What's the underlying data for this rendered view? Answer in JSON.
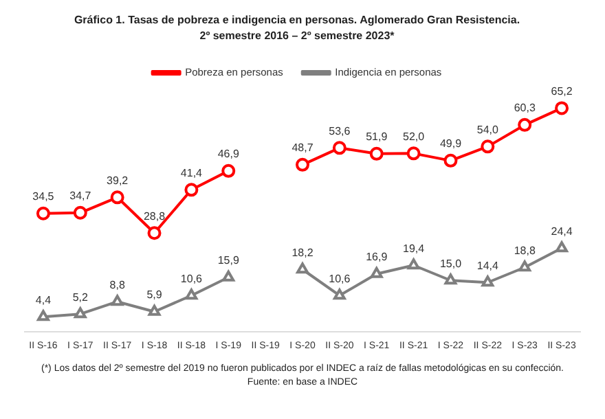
{
  "chart_data": {
    "type": "line",
    "title": "Gráfico 1. Tasas de pobreza e indigencia en personas. Aglomerado Gran Resistencia.",
    "subtitle": "2º semestre 2016 – 2º semestre 2023*",
    "categories": [
      "II S-16",
      "I S-17",
      "II S-17",
      "I S-18",
      "II S-18",
      "I S-19",
      "II S-19",
      "I S-20",
      "II S-20",
      "I S-21",
      "II S-21",
      "I S-22",
      "II S-22",
      "I S-23",
      "II S-23"
    ],
    "series": [
      {
        "name": "Pobreza en personas",
        "color": "#ff0000",
        "marker": "circle",
        "values": [
          34.5,
          34.7,
          39.2,
          28.8,
          41.4,
          46.9,
          null,
          48.7,
          53.6,
          51.9,
          52.0,
          49.9,
          54.0,
          60.3,
          65.2
        ],
        "value_labels": [
          "34,5",
          "34,7",
          "39,2",
          "28,8",
          "41,4",
          "46,9",
          null,
          "48,7",
          "53,6",
          "51,9",
          "52,0",
          "49,9",
          "54,0",
          "60,3",
          "65,2"
        ]
      },
      {
        "name": "Indigencia en personas",
        "color": "#7f7f7f",
        "marker": "triangle",
        "values": [
          4.4,
          5.2,
          8.8,
          5.9,
          10.6,
          15.9,
          null,
          18.2,
          10.6,
          16.9,
          19.4,
          15.0,
          14.4,
          18.8,
          24.4
        ],
        "value_labels": [
          "4,4",
          "5,2",
          "8,8",
          "5,9",
          "10,6",
          "15,9",
          null,
          "18,2",
          "10,6",
          "16,9",
          "19,4",
          "15,0",
          "14,4",
          "18,8",
          "24,4"
        ]
      }
    ],
    "legend": "top",
    "grid": false,
    "tick_labels": "x",
    "line_style": "solid",
    "annotations": [
      "(*) Los datos del 2º semestre del 2019 no fueron publicados por el INDEC a raíz de fallas metodológicas en su confección.",
      "Fuente: en base a INDEC"
    ]
  }
}
